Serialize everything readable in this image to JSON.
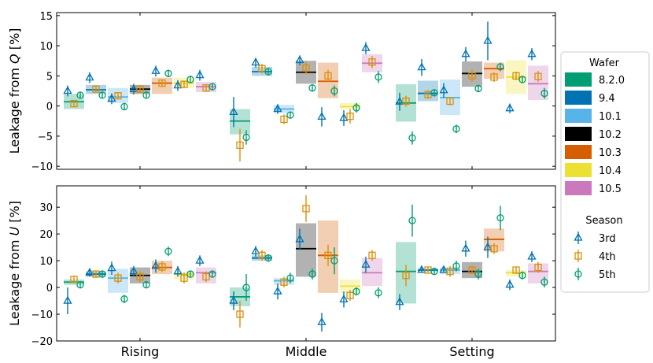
{
  "chart_data": {
    "type": "scatter",
    "categories": [
      "Rising",
      "Middle",
      "Setting"
    ],
    "legend": {
      "wafer_title": "Wafer",
      "wafers": [
        {
          "name": "8.2.0",
          "color": "#029E73"
        },
        {
          "name": "9.4",
          "color": "#0173B2"
        },
        {
          "name": "10.1",
          "color": "#56B4E9"
        },
        {
          "name": "10.2",
          "color": "#000000"
        },
        {
          "name": "10.3",
          "color": "#D55E00"
        },
        {
          "name": "10.4",
          "color": "#ECE133"
        },
        {
          "name": "10.5",
          "color": "#CC78BC"
        }
      ],
      "season_title": "Season",
      "seasons": [
        {
          "name": "3rd",
          "marker": "triangle",
          "color": "#0173B2"
        },
        {
          "name": "4th",
          "marker": "square",
          "color": "#DE8F05"
        },
        {
          "name": "5th",
          "marker": "circle",
          "color": "#029E73"
        }
      ]
    },
    "panels": [
      {
        "ylabel_prefix": "Leakage from ",
        "ylabel_var": "Q",
        "ylabel_suffix": " [%]",
        "ylim": [
          -10.5,
          15.5
        ],
        "yticks": [
          -10,
          -5,
          0,
          5,
          10,
          15
        ],
        "groups": {
          "Rising": [
            {
              "wafer": "8.2.0",
              "mean": 0.7,
              "lo": -0.5,
              "hi": 2.0,
              "points": [
                [
                  2.5,
                  0.9
                ],
                [
                  0.4,
                  0.6
                ],
                [
                  1.8,
                  0.6
                ]
              ]
            },
            {
              "wafer": "9.4",
              "mean": 2.7,
              "lo": 2.0,
              "hi": 3.5,
              "points": [
                [
                  4.7,
                  0.9
                ],
                [
                  2.8,
                  0.6
                ],
                [
                  1.8,
                  0.6
                ]
              ]
            },
            {
              "wafer": "10.1",
              "mean": 1.5,
              "lo": 0.5,
              "hi": 3.0,
              "points": [
                [
                  1.2,
                  0.9
                ],
                [
                  1.7,
                  0.6
                ],
                [
                  -0.1,
                  0.6
                ]
              ]
            },
            {
              "wafer": "10.2",
              "mean": 2.8,
              "lo": 2.0,
              "hi": 3.5,
              "points": [
                [
                  2.8,
                  0.9
                ],
                [
                  2.8,
                  0.6
                ],
                [
                  1.8,
                  0.6
                ]
              ]
            },
            {
              "wafer": "10.3",
              "mean": 3.8,
              "lo": 2.0,
              "hi": 4.7,
              "points": [
                [
                  5.8,
                  0.9
                ],
                [
                  3.8,
                  0.6
                ],
                [
                  5.4,
                  0.6
                ]
              ]
            },
            {
              "wafer": "10.4",
              "mean": 3.8,
              "lo": 3.0,
              "hi": 4.7,
              "points": [
                [
                  3.4,
                  0.9
                ],
                [
                  3.6,
                  0.6
                ],
                [
                  4.4,
                  0.6
                ]
              ]
            },
            {
              "wafer": "10.5",
              "mean": 3.2,
              "lo": 2.3,
              "hi": 4.0,
              "points": [
                [
                  5.1,
                  0.9
                ],
                [
                  3.0,
                  0.6
                ],
                [
                  3.2,
                  0.6
                ]
              ]
            }
          ],
          "Middle": [
            {
              "wafer": "8.2.0",
              "mean": -2.5,
              "lo": -4.7,
              "hi": -0.5,
              "points": [
                [
                  -1.0,
                  2.5
                ],
                [
                  -6.5,
                  2.7
                ],
                [
                  -5.2,
                  1.2
                ]
              ]
            },
            {
              "wafer": "9.4",
              "mean": 5.7,
              "lo": 5.0,
              "hi": 6.5,
              "points": [
                [
                  7.2,
                  0.8
                ],
                [
                  6.2,
                  0.8
                ],
                [
                  5.7,
                  0.6
                ]
              ]
            },
            {
              "wafer": "10.1",
              "mean": -0.5,
              "lo": -1.2,
              "hi": 0.2,
              "points": [
                [
                  -0.5,
                  0.8
                ],
                [
                  -2.2,
                  0.8
                ],
                [
                  -1.5,
                  0.6
                ]
              ]
            },
            {
              "wafer": "10.2",
              "mean": 5.6,
              "lo": 3.7,
              "hi": 7.5,
              "points": [
                [
                  7.6,
                  0.8
                ],
                [
                  6.3,
                  1.0
                ],
                [
                  3.0,
                  0.6
                ]
              ]
            },
            {
              "wafer": "10.3",
              "mean": 4.1,
              "lo": 1.3,
              "hi": 7.2,
              "points": [
                [
                  -1.8,
                  1.6
                ],
                [
                  5.0,
                  1.0
                ],
                [
                  2.5,
                  0.9
                ]
              ]
            },
            {
              "wafer": "10.4",
              "mean": -0.1,
              "lo": -0.5,
              "hi": 0.5,
              "points": [
                [
                  -2.0,
                  1.3
                ],
                [
                  -1.7,
                  1.2
                ],
                [
                  -0.3,
                  0.8
                ]
              ]
            },
            {
              "wafer": "10.5",
              "mean": 7.1,
              "lo": 5.6,
              "hi": 8.6,
              "points": [
                [
                  9.6,
                  1.0
                ],
                [
                  7.3,
                  1.0
                ],
                [
                  4.8,
                  1.0
                ]
              ]
            }
          ],
          "Setting": [
            {
              "wafer": "8.2.0",
              "mean": 0.5,
              "lo": -2.6,
              "hi": 3.6,
              "points": [
                [
                  0.7,
                  1.5
                ],
                [
                  0.8,
                  0.9
                ],
                [
                  -5.3,
                  1.1
                ]
              ]
            },
            {
              "wafer": "9.4",
              "mean": 2.1,
              "lo": 0.8,
              "hi": 4.2,
              "points": [
                [
                  6.4,
                  1.4
                ],
                [
                  1.9,
                  0.7
                ],
                [
                  2.2,
                  0.6
                ]
              ]
            },
            {
              "wafer": "10.1",
              "mean": 1.4,
              "lo": -1.5,
              "hi": 4.4,
              "points": [
                [
                  2.6,
                  1.2
                ],
                [
                  0.8,
                  0.7
                ],
                [
                  -3.8,
                  0.7
                ]
              ]
            },
            {
              "wafer": "10.2",
              "mean": 5.4,
              "lo": 3.2,
              "hi": 7.4,
              "points": [
                [
                  8.6,
                  1.2
                ],
                [
                  5.0,
                  1.0
                ],
                [
                  2.9,
                  0.6
                ]
              ]
            },
            {
              "wafer": "10.3",
              "mean": 6.2,
              "lo": 4.5,
              "hi": 7.2,
              "points": [
                [
                  10.8,
                  3.2
                ],
                [
                  4.8,
                  0.8
                ],
                [
                  6.5,
                  0.7
                ]
              ]
            },
            {
              "wafer": "10.4",
              "mean": 4.8,
              "lo": 2.0,
              "hi": 7.6,
              "points": [
                [
                  -0.4,
                  0.8
                ],
                [
                  5.0,
                  0.7
                ],
                [
                  4.4,
                  0.5
                ]
              ]
            },
            {
              "wafer": "10.5",
              "mean": 3.7,
              "lo": 1.0,
              "hi": 6.7,
              "points": [
                [
                  8.6,
                  1.0
                ],
                [
                  4.9,
                  0.9
                ],
                [
                  2.1,
                  0.9
                ]
              ]
            }
          ]
        }
      },
      {
        "ylabel_prefix": "Leakage from ",
        "ylabel_var": "U",
        "ylabel_suffix": " [%]",
        "ylim": [
          -20,
          38
        ],
        "yticks": [
          -20,
          -10,
          0,
          10,
          20,
          30
        ],
        "groups": {
          "Rising": [
            {
              "wafer": "8.2.0",
              "mean": 2.0,
              "lo": 1.0,
              "hi": 3.0,
              "points": [
                [
                  -5.0,
                  5.0
                ],
                [
                  3.0,
                  1.5
                ],
                [
                  1.0,
                  1.0
                ]
              ]
            },
            {
              "wafer": "9.4",
              "mean": 5.0,
              "lo": 4.0,
              "hi": 6.0,
              "points": [
                [
                  5.5,
                  1.5
                ],
                [
                  5.0,
                  1.0
                ],
                [
                  5.0,
                  1.0
                ]
              ]
            },
            {
              "wafer": "10.1",
              "mean": 3.5,
              "lo": -2.0,
              "hi": 7.0,
              "points": [
                [
                  7.2,
                  2.5
                ],
                [
                  3.5,
                  2.0
                ],
                [
                  -4.3,
                  1.5
                ]
              ]
            },
            {
              "wafer": "10.2",
              "mean": 4.5,
              "lo": 1.5,
              "hi": 7.5,
              "points": [
                [
                  6.0,
                  2.0
                ],
                [
                  4.0,
                  2.0
                ],
                [
                  1.0,
                  1.0
                ]
              ]
            },
            {
              "wafer": "10.3",
              "mean": 7.5,
              "lo": 5.0,
              "hi": 10.0,
              "points": [
                [
                  8.0,
                  2.5
                ],
                [
                  7.7,
                  2.0
                ],
                [
                  13.5,
                  1.8
                ]
              ]
            },
            {
              "wafer": "10.4",
              "mean": 5.0,
              "lo": 3.0,
              "hi": 6.0,
              "points": [
                [
                  6.0,
                  2.0
                ],
                [
                  3.5,
                  2.0
                ],
                [
                  5.0,
                  1.0
                ]
              ]
            },
            {
              "wafer": "10.5",
              "mean": 5.5,
              "lo": 1.5,
              "hi": 7.5,
              "points": [
                [
                  10.0,
                  2.0
                ],
                [
                  4.0,
                  2.0
                ],
                [
                  5.0,
                  1.0
                ]
              ]
            }
          ],
          "Middle": [
            {
              "wafer": "8.2.0",
              "mean": -3.5,
              "lo": -7.0,
              "hi": 0.0,
              "points": [
                [
                  -5.0,
                  3.5
                ],
                [
                  -10.0,
                  5.0
                ],
                [
                  0.0,
                  5.0
                ]
              ]
            },
            {
              "wafer": "9.4",
              "mean": 11.0,
              "lo": 10.0,
              "hi": 12.0,
              "points": [
                [
                  13.5,
                  2.0
                ],
                [
                  12.0,
                  2.0
                ],
                [
                  11.0,
                  1.0
                ]
              ]
            },
            {
              "wafer": "10.1",
              "mean": 2.5,
              "lo": 1.0,
              "hi": 3.5,
              "points": [
                [
                  -1.5,
                  3.0
                ],
                [
                  2.0,
                  2.0
                ],
                [
                  3.5,
                  2.0
                ]
              ]
            },
            {
              "wafer": "10.2",
              "mean": 14.5,
              "lo": 4.0,
              "hi": 24.0,
              "points": [
                [
                  18.0,
                  4.0
                ],
                [
                  29.5,
                  5.0
                ],
                [
                  5.0,
                  2.0
                ]
              ]
            },
            {
              "wafer": "10.3",
              "mean": 12.0,
              "lo": -2.0,
              "hi": 25.0,
              "points": [
                [
                  -13.0,
                  3.5
                ],
                [
                  12.0,
                  4.0
                ],
                [
                  10.0,
                  5.0
                ]
              ]
            },
            {
              "wafer": "10.4",
              "mean": 0.5,
              "lo": -2.0,
              "hi": 3.0,
              "points": [
                [
                  -4.5,
                  3.0
                ],
                [
                  -3.0,
                  2.0
                ],
                [
                  -1.5,
                  1.5
                ]
              ]
            },
            {
              "wafer": "10.5",
              "mean": 5.5,
              "lo": 0.5,
              "hi": 11.0,
              "points": [
                [
                  8.5,
                  3.0
                ],
                [
                  12.0,
                  2.0
                ],
                [
                  -2.0,
                  2.0
                ]
              ]
            }
          ],
          "Setting": [
            {
              "wafer": "8.2.0",
              "mean": 6.0,
              "lo": -6.0,
              "hi": 17.0,
              "points": [
                [
                  -5.5,
                  3.0
                ],
                [
                  4.5,
                  4.0
                ],
                [
                  25.0,
                  6.0
                ]
              ]
            },
            {
              "wafer": "9.4",
              "mean": 6.5,
              "lo": 6.0,
              "hi": 7.0,
              "points": [
                [
                  6.5,
                  1.0
                ],
                [
                  6.5,
                  1.0
                ],
                [
                  6.0,
                  1.0
                ]
              ]
            },
            {
              "wafer": "10.1",
              "mean": 6.5,
              "lo": 5.0,
              "hi": 7.5,
              "points": [
                [
                  6.5,
                  1.0
                ],
                [
                  6.0,
                  2.0
                ],
                [
                  8.0,
                  2.0
                ]
              ]
            },
            {
              "wafer": "10.2",
              "mean": 6.0,
              "lo": 3.5,
              "hi": 9.5,
              "points": [
                [
                  14.5,
                  3.0
                ],
                [
                  6.5,
                  1.5
                ],
                [
                  5.0,
                  2.0
                ]
              ]
            },
            {
              "wafer": "10.3",
              "mean": 18.0,
              "lo": 13.5,
              "hi": 22.0,
              "points": [
                [
                  15.0,
                  4.0
                ],
                [
                  14.5,
                  2.0
                ],
                [
                  26.0,
                  4.5
                ]
              ]
            },
            {
              "wafer": "10.4",
              "mean": 5.5,
              "lo": 4.0,
              "hi": 6.5,
              "points": [
                [
                  1.0,
                  2.0
                ],
                [
                  6.5,
                  1.0
                ],
                [
                  4.5,
                  1.5
                ]
              ]
            },
            {
              "wafer": "10.5",
              "mean": 6.0,
              "lo": 1.5,
              "hi": 9.0,
              "points": [
                [
                  11.5,
                  2.0
                ],
                [
                  7.5,
                  2.0
                ],
                [
                  2.0,
                  2.0
                ]
              ]
            }
          ]
        }
      }
    ]
  }
}
